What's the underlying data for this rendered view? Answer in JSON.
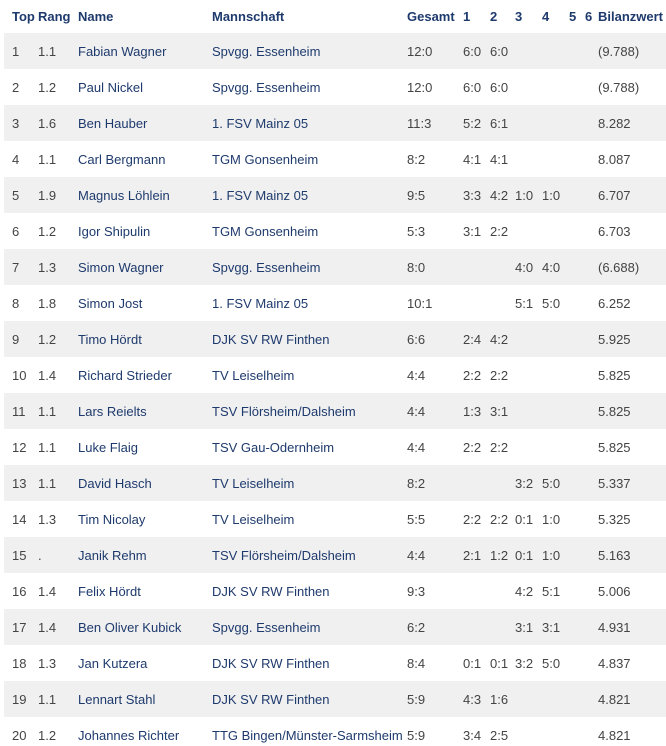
{
  "colors": {
    "navy": "#1e3a6d",
    "num": "#444444",
    "stripe": "#f0f0f0"
  },
  "table": {
    "columns": [
      {
        "key": "top",
        "label": "Top"
      },
      {
        "key": "rang",
        "label": "Rang"
      },
      {
        "key": "name",
        "label": "Name"
      },
      {
        "key": "mannschaft",
        "label": "Mannschaft"
      },
      {
        "key": "gesamt",
        "label": "Gesamt"
      },
      {
        "key": "r1",
        "label": "1"
      },
      {
        "key": "r2",
        "label": "2"
      },
      {
        "key": "r3",
        "label": "3"
      },
      {
        "key": "r4",
        "label": "4"
      },
      {
        "key": "r5",
        "label": "5"
      },
      {
        "key": "r6",
        "label": "6"
      },
      {
        "key": "bilanzwert",
        "label": "Bilanzwert"
      }
    ],
    "rows": [
      {
        "top": "1",
        "rang": "1.1",
        "name": "Fabian Wagner",
        "mannschaft": "Spvgg. Essenheim",
        "gesamt": "12:0",
        "r1": "6:0",
        "r2": "6:0",
        "r3": "",
        "r4": "",
        "r5": "",
        "r6": "",
        "bilanzwert": "(9.788)"
      },
      {
        "top": "2",
        "rang": "1.2",
        "name": "Paul Nickel",
        "mannschaft": "Spvgg. Essenheim",
        "gesamt": "12:0",
        "r1": "6:0",
        "r2": "6:0",
        "r3": "",
        "r4": "",
        "r5": "",
        "r6": "",
        "bilanzwert": "(9.788)"
      },
      {
        "top": "3",
        "rang": "1.6",
        "name": "Ben Hauber",
        "mannschaft": "1. FSV Mainz 05",
        "gesamt": "11:3",
        "r1": "5:2",
        "r2": "6:1",
        "r3": "",
        "r4": "",
        "r5": "",
        "r6": "",
        "bilanzwert": "8.282"
      },
      {
        "top": "4",
        "rang": "1.1",
        "name": "Carl Bergmann",
        "mannschaft": "TGM Gonsenheim",
        "gesamt": "8:2",
        "r1": "4:1",
        "r2": "4:1",
        "r3": "",
        "r4": "",
        "r5": "",
        "r6": "",
        "bilanzwert": "8.087"
      },
      {
        "top": "5",
        "rang": "1.9",
        "name": "Magnus Löhlein",
        "mannschaft": "1. FSV Mainz 05",
        "gesamt": "9:5",
        "r1": "3:3",
        "r2": "4:2",
        "r3": "1:0",
        "r4": "1:0",
        "r5": "",
        "r6": "",
        "bilanzwert": "6.707"
      },
      {
        "top": "6",
        "rang": "1.2",
        "name": "Igor Shipulin",
        "mannschaft": "TGM Gonsenheim",
        "gesamt": "5:3",
        "r1": "3:1",
        "r2": "2:2",
        "r3": "",
        "r4": "",
        "r5": "",
        "r6": "",
        "bilanzwert": "6.703"
      },
      {
        "top": "7",
        "rang": "1.3",
        "name": "Simon Wagner",
        "mannschaft": "Spvgg. Essenheim",
        "gesamt": "8:0",
        "r1": "",
        "r2": "",
        "r3": "4:0",
        "r4": "4:0",
        "r5": "",
        "r6": "",
        "bilanzwert": "(6.688)"
      },
      {
        "top": "8",
        "rang": "1.8",
        "name": "Simon Jost",
        "mannschaft": "1. FSV Mainz 05",
        "gesamt": "10:1",
        "r1": "",
        "r2": "",
        "r3": "5:1",
        "r4": "5:0",
        "r5": "",
        "r6": "",
        "bilanzwert": "6.252"
      },
      {
        "top": "9",
        "rang": "1.2",
        "name": "Timo Hördt",
        "mannschaft": "DJK SV RW Finthen",
        "gesamt": "6:6",
        "r1": "2:4",
        "r2": "4:2",
        "r3": "",
        "r4": "",
        "r5": "",
        "r6": "",
        "bilanzwert": "5.925"
      },
      {
        "top": "10",
        "rang": "1.4",
        "name": "Richard Strieder",
        "mannschaft": "TV Leiselheim",
        "gesamt": "4:4",
        "r1": "2:2",
        "r2": "2:2",
        "r3": "",
        "r4": "",
        "r5": "",
        "r6": "",
        "bilanzwert": "5.825"
      },
      {
        "top": "11",
        "rang": "1.1",
        "name": "Lars Reielts",
        "mannschaft": "TSV Flörsheim/Dalsheim",
        "gesamt": "4:4",
        "r1": "1:3",
        "r2": "3:1",
        "r3": "",
        "r4": "",
        "r5": "",
        "r6": "",
        "bilanzwert": "5.825"
      },
      {
        "top": "12",
        "rang": "1.1",
        "name": "Luke Flaig",
        "mannschaft": "TSV Gau-Odernheim",
        "gesamt": "4:4",
        "r1": "2:2",
        "r2": "2:2",
        "r3": "",
        "r4": "",
        "r5": "",
        "r6": "",
        "bilanzwert": "5.825"
      },
      {
        "top": "13",
        "rang": "1.1",
        "name": "David Hasch",
        "mannschaft": "TV Leiselheim",
        "gesamt": "8:2",
        "r1": "",
        "r2": "",
        "r3": "3:2",
        "r4": "5:0",
        "r5": "",
        "r6": "",
        "bilanzwert": "5.337"
      },
      {
        "top": "14",
        "rang": "1.3",
        "name": "Tim Nicolay",
        "mannschaft": "TV Leiselheim",
        "gesamt": "5:5",
        "r1": "2:2",
        "r2": "2:2",
        "r3": "0:1",
        "r4": "1:0",
        "r5": "",
        "r6": "",
        "bilanzwert": "5.325"
      },
      {
        "top": "15",
        "rang": ".",
        "name": "Janik Rehm",
        "mannschaft": "TSV Flörsheim/Dalsheim",
        "gesamt": "4:4",
        "r1": "2:1",
        "r2": "1:2",
        "r3": "0:1",
        "r4": "1:0",
        "r5": "",
        "r6": "",
        "bilanzwert": "5.163"
      },
      {
        "top": "16",
        "rang": "1.4",
        "name": "Felix Hördt",
        "mannschaft": "DJK SV RW Finthen",
        "gesamt": "9:3",
        "r1": "",
        "r2": "",
        "r3": "4:2",
        "r4": "5:1",
        "r5": "",
        "r6": "",
        "bilanzwert": "5.006"
      },
      {
        "top": "17",
        "rang": "1.4",
        "name": "Ben Oliver Kubick",
        "mannschaft": "Spvgg. Essenheim",
        "gesamt": "6:2",
        "r1": "",
        "r2": "",
        "r3": "3:1",
        "r4": "3:1",
        "r5": "",
        "r6": "",
        "bilanzwert": "4.931"
      },
      {
        "top": "18",
        "rang": "1.3",
        "name": "Jan Kutzera",
        "mannschaft": "DJK SV RW Finthen",
        "gesamt": "8:4",
        "r1": "0:1",
        "r2": "0:1",
        "r3": "3:2",
        "r4": "5:0",
        "r5": "",
        "r6": "",
        "bilanzwert": "4.837"
      },
      {
        "top": "19",
        "rang": "1.1",
        "name": "Lennart Stahl",
        "mannschaft": "DJK SV RW Finthen",
        "gesamt": "5:9",
        "r1": "4:3",
        "r2": "1:6",
        "r3": "",
        "r4": "",
        "r5": "",
        "r6": "",
        "bilanzwert": "4.821"
      },
      {
        "top": "20",
        "rang": "1.2",
        "name": "Johannes Richter",
        "mannschaft": "TTG Bingen/Münster-Sarmsheim",
        "gesamt": "5:9",
        "r1": "3:4",
        "r2": "2:5",
        "r3": "",
        "r4": "",
        "r5": "",
        "r6": "",
        "bilanzwert": "4.821"
      }
    ]
  }
}
